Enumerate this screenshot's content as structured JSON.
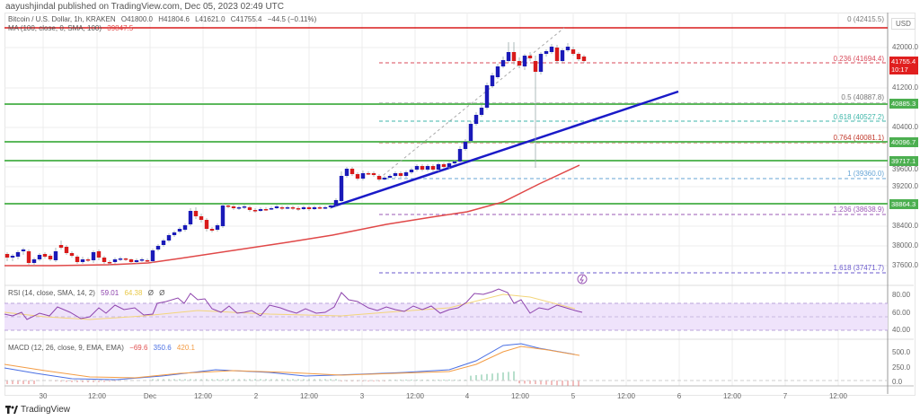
{
  "header": {
    "publisher_line": "aayushjindal published on TradingView.com, Dec 05, 2023 02:49 UTC"
  },
  "legend": {
    "symbol": "Bitcoin / U.S. Dollar, 1h, KRAKEN",
    "open": "O41800.0",
    "high": "H41804.6",
    "low": "L41621.0",
    "close": "C41755.4",
    "change": "−44.5 (−0.11%)",
    "ma_label": "MA (100, close, 0, SMA, 100)",
    "ma_value": "39847.5"
  },
  "rsi": {
    "label": "RSI (14, close, SMA, 14, 2)",
    "value": "59.01",
    "sma_value": "64.38",
    "extra1": "Ø",
    "extra2": "Ø"
  },
  "macd": {
    "label": "MACD (12, 26, close, 9, EMA, EMA)",
    "hist": "−69.6",
    "macd": "350.6",
    "signal": "420.1"
  },
  "price_axis": {
    "currency": "USD",
    "ticks": [
      "42000.0",
      "41200.0",
      "40400.0",
      "39600.0",
      "39200.0",
      "38400.0",
      "38000.0",
      "37600.0"
    ],
    "current_price": "41755.4",
    "countdown": "10:17",
    "levels": [
      "40885.3",
      "40096.7",
      "39717.1",
      "38864.3"
    ]
  },
  "rsi_axis": {
    "ticks": [
      "80.00",
      "60.00",
      "40.00"
    ]
  },
  "macd_axis": {
    "ticks": [
      "500.0",
      "250.0",
      "0.0"
    ]
  },
  "time_axis": {
    "ticks": [
      "30",
      "12:00",
      "Dec",
      "12:00",
      "2",
      "12:00",
      "3",
      "12:00",
      "4",
      "12:00",
      "5",
      "12:00",
      "6",
      "12:00",
      "7",
      "12:00"
    ]
  },
  "fib": {
    "l0": "0 (42415.5)",
    "l236": "0.236 (41694.4)",
    "l5": "0.5 (40887.8)",
    "l618": "0.618 (40527.2)",
    "l764": "0.764 (40081.1)",
    "l1": "1 (39360.0)",
    "l1236": "1.236 (38638.9)",
    "l1618": "1.618 (37471.7)"
  },
  "brand": {
    "name": "TradingView"
  },
  "colors": {
    "bull": "#1a1ab8",
    "bear": "#d81b1b",
    "support": "#5cb85c",
    "trendline": "#1a1ac8",
    "ma": "#e04848",
    "rsi": "#8e44ad",
    "rsi_band": "#efe3fb",
    "macd_line": "#4a6fe3",
    "signal_line": "#f39c45"
  },
  "chart_data": {
    "type": "candlestick",
    "title": "Bitcoin / U.S. Dollar, 1h, KRAKEN",
    "xlabel": "",
    "ylabel": "USD",
    "ylim": [
      37400,
      42500
    ],
    "x_ticks": [
      "30",
      "12:00",
      "Dec",
      "12:00",
      "2",
      "12:00",
      "3",
      "12:00",
      "4",
      "12:00",
      "5",
      "12:00",
      "6",
      "12:00",
      "7",
      "12:00"
    ],
    "ohlc_last": {
      "open": 41800.0,
      "high": 41804.6,
      "low": 41621.0,
      "close": 41755.4,
      "change": -44.5,
      "change_pct": -0.11
    },
    "horizontal_levels": [
      42415.5,
      40885.3,
      40096.7,
      39717.1,
      38864.3
    ],
    "fibonacci": [
      {
        "ratio": 0,
        "price": 42415.5
      },
      {
        "ratio": 0.236,
        "price": 41694.4
      },
      {
        "ratio": 0.5,
        "price": 40887.8
      },
      {
        "ratio": 0.618,
        "price": 40527.2
      },
      {
        "ratio": 0.764,
        "price": 40081.1
      },
      {
        "ratio": 1,
        "price": 39360.0
      },
      {
        "ratio": 1.236,
        "price": 38638.9
      },
      {
        "ratio": 1.618,
        "price": 37471.7
      }
    ],
    "trendline": {
      "from": {
        "x": "Dec 2 ~14:00",
        "y": 38850
      },
      "to": {
        "x": "Dec 5 ~18:00",
        "y": 41200
      }
    },
    "series": [
      {
        "name": "MA 100",
        "approx_values": [
          37700,
          37700,
          37750,
          38000,
          38300,
          38600,
          38900,
          39300,
          39847.5
        ]
      },
      {
        "name": "RSI 14",
        "last": 59.01,
        "sma": 64.38
      },
      {
        "name": "MACD",
        "macd": 350.6,
        "signal": 420.1,
        "hist": -69.6
      }
    ],
    "grid": true,
    "legend_position": "top-left"
  }
}
